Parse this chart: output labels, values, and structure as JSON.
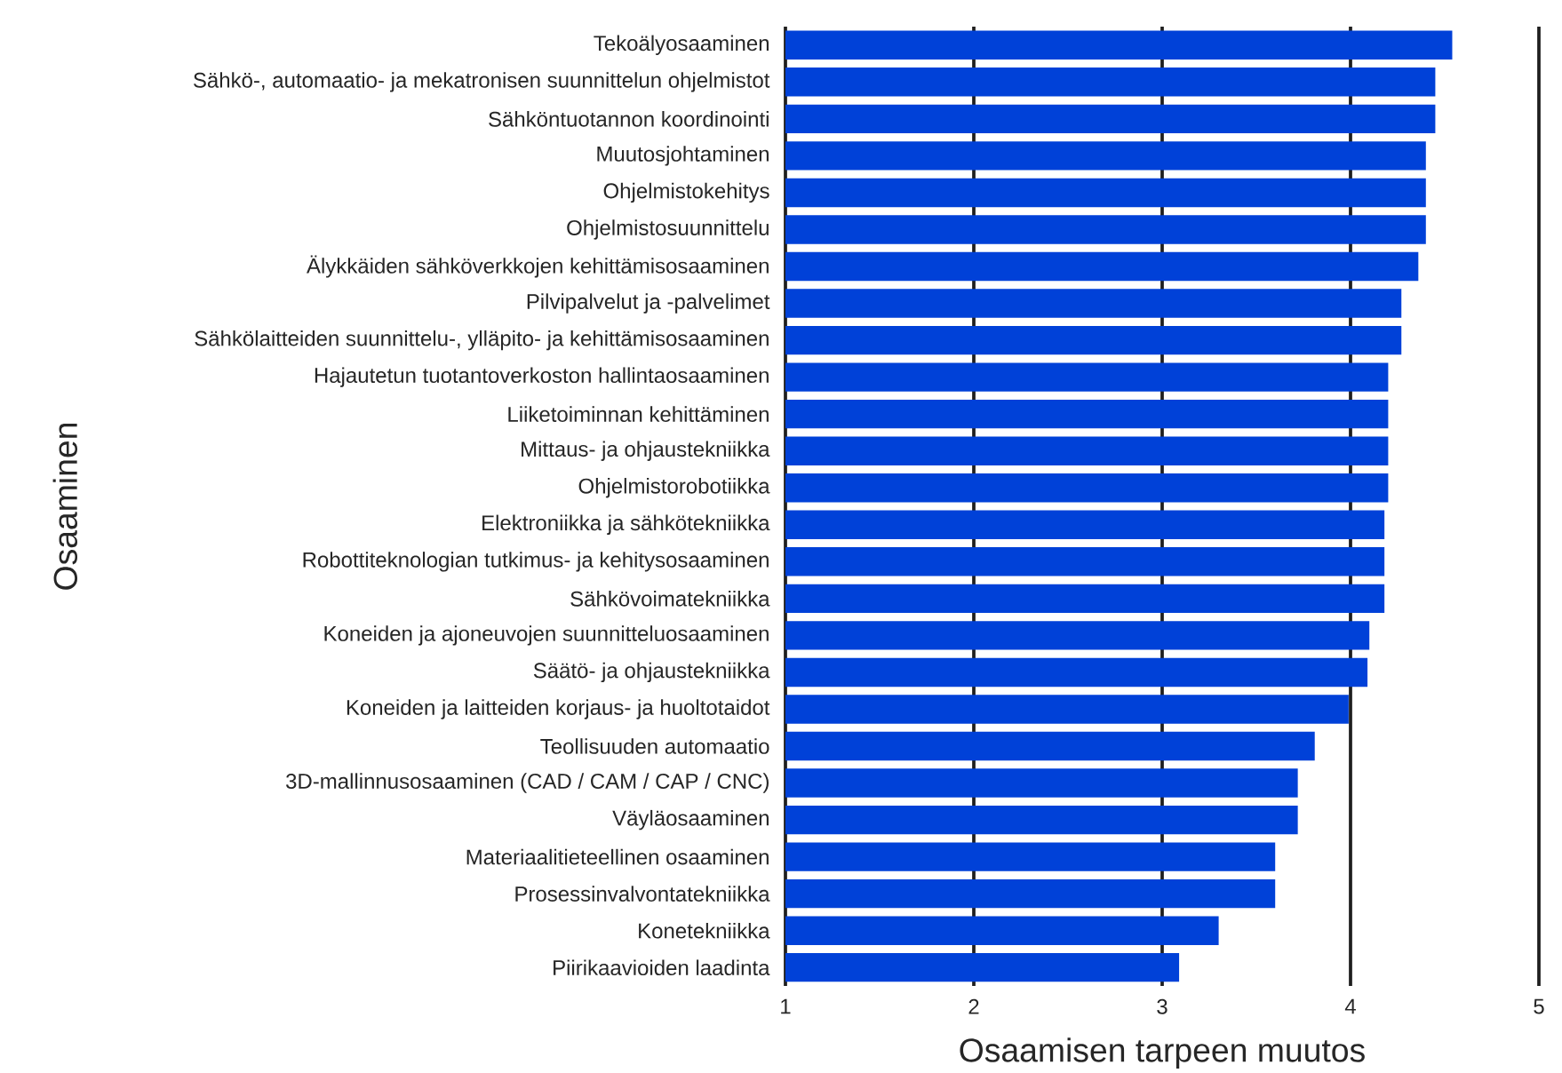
{
  "chart_data": {
    "type": "bar",
    "orientation": "horizontal",
    "xlabel": "Osaamisen tarpeen muutos",
    "ylabel": "Osaaminen",
    "categories": [
      "Tekoälyosaaminen",
      "Sähkö-, automaatio- ja mekatronisen suunnittelun ohjelmistot",
      "Sähköntuotannon koordinointi",
      "Muutosjohtaminen",
      "Ohjelmistokehitys",
      "Ohjelmistosuunnittelu",
      "Älykkäiden sähköverkkojen kehittämisosaaminen",
      "Pilvipalvelut ja -palvelimet",
      "Sähkölaitteiden suunnittelu-, ylläpito- ja kehittämisosaaminen",
      "Hajautetun tuotantoverkoston hallintaosaaminen",
      "Liiketoiminnan kehittäminen",
      "Mittaus- ja ohjaustekniikka",
      "Ohjelmistorobotiikka",
      "Elektroniikka ja sähkötekniikka",
      "Robottiteknologian tutkimus- ja kehitysosaaminen",
      "Sähkövoimatekniikka",
      "Koneiden ja ajoneuvojen suunnitteluosaaminen",
      "Säätö- ja ohjaustekniikka",
      "Koneiden ja laitteiden korjaus- ja huoltotaidot",
      "Teollisuuden automaatio",
      "3D-mallinnusosaaminen (CAD / CAM / CAP / CNC)",
      "Väyläosaaminen",
      "Materiaalitieteellinen osaaminen",
      "Prosessinvalvontatekniikka",
      "Konetekniikka",
      "Piirikaavioiden laadinta"
    ],
    "values": [
      4.54,
      4.45,
      4.45,
      4.4,
      4.4,
      4.4,
      4.36,
      4.27,
      4.27,
      4.2,
      4.2,
      4.2,
      4.2,
      4.18,
      4.18,
      4.18,
      4.1,
      4.09,
      3.99,
      3.81,
      3.72,
      3.72,
      3.6,
      3.6,
      3.3,
      3.09
    ],
    "color": "#0041d8",
    "xlim": [
      1,
      5
    ],
    "xticks": [
      1,
      2,
      3,
      4,
      5
    ],
    "grid": "x"
  }
}
